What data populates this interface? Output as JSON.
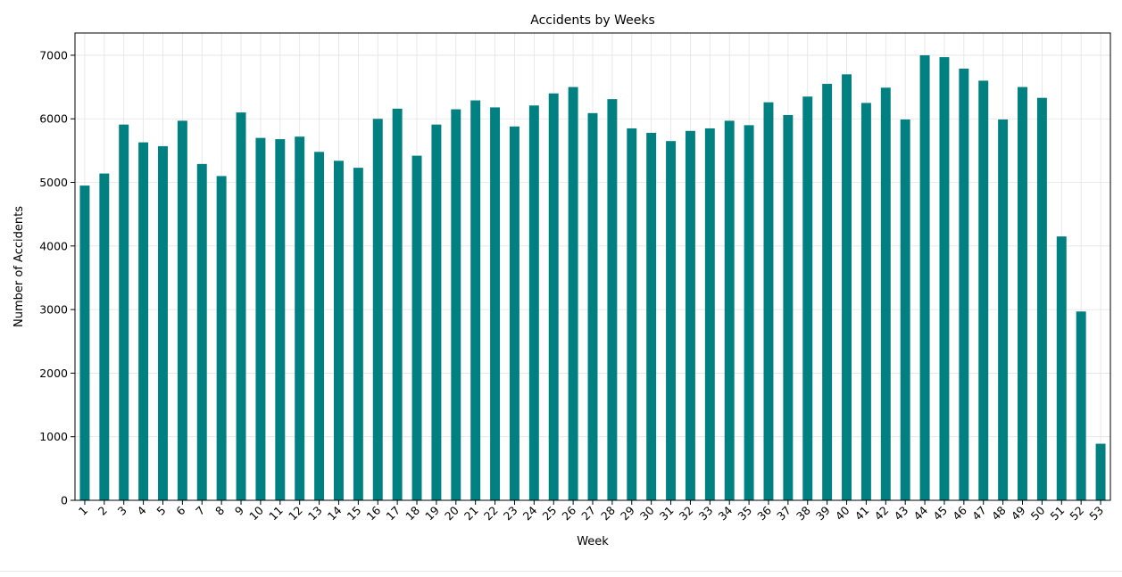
{
  "chart_data": {
    "type": "bar",
    "title": "Accidents by Weeks",
    "xlabel": "Week",
    "ylabel": "Number of Accidents",
    "ylim": [
      0,
      7350
    ],
    "yticks": [
      0,
      1000,
      2000,
      3000,
      4000,
      5000,
      6000,
      7000
    ],
    "grid": true,
    "legend": "none",
    "bar_color": "#008080",
    "categories": [
      "1",
      "2",
      "3",
      "4",
      "5",
      "6",
      "7",
      "8",
      "9",
      "10",
      "11",
      "12",
      "13",
      "14",
      "15",
      "16",
      "17",
      "18",
      "19",
      "20",
      "21",
      "22",
      "23",
      "24",
      "25",
      "26",
      "27",
      "28",
      "29",
      "30",
      "31",
      "32",
      "33",
      "34",
      "35",
      "36",
      "37",
      "38",
      "39",
      "40",
      "41",
      "42",
      "43",
      "44",
      "45",
      "46",
      "47",
      "48",
      "49",
      "50",
      "51",
      "52",
      "53"
    ],
    "values": [
      4950,
      5140,
      5910,
      5630,
      5570,
      5970,
      5290,
      5100,
      6100,
      5700,
      5680,
      5720,
      5480,
      5340,
      5230,
      6000,
      6160,
      5420,
      5910,
      6150,
      6290,
      6180,
      5880,
      6210,
      6400,
      6500,
      6090,
      6310,
      5850,
      5780,
      5650,
      5810,
      5850,
      5970,
      5900,
      6260,
      6060,
      6350,
      6550,
      6700,
      6250,
      6490,
      5990,
      7000,
      6970,
      6790,
      6600,
      5990,
      6500,
      6330,
      4150,
      2970,
      890
    ]
  }
}
